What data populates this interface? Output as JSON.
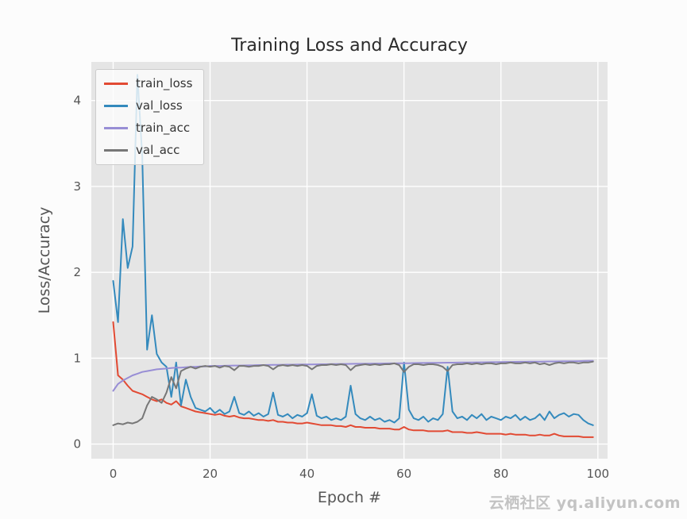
{
  "watermark": {
    "text": "云栖社区 yq.aliyun.com"
  },
  "chart_data": {
    "type": "line",
    "title": "Training Loss and Accuracy",
    "xlabel": "Epoch #",
    "ylabel": "Loss/Accuracy",
    "xlim": [
      -4.5,
      102
    ],
    "ylim": [
      -0.17,
      4.45
    ],
    "x_ticks": [
      0,
      20,
      40,
      60,
      80,
      100
    ],
    "y_ticks": [
      0,
      1,
      2,
      3,
      4
    ],
    "grid": true,
    "legend_position": "upper left",
    "plot_bg": "#e5e5e5",
    "grid_color": "#ffffff",
    "tick_color": "#555555",
    "title_color": "#2b2b2b",
    "x": [
      0,
      1,
      2,
      3,
      4,
      5,
      6,
      7,
      8,
      9,
      10,
      11,
      12,
      13,
      14,
      15,
      16,
      17,
      18,
      19,
      20,
      21,
      22,
      23,
      24,
      25,
      26,
      27,
      28,
      29,
      30,
      31,
      32,
      33,
      34,
      35,
      36,
      37,
      38,
      39,
      40,
      41,
      42,
      43,
      44,
      45,
      46,
      47,
      48,
      49,
      50,
      51,
      52,
      53,
      54,
      55,
      56,
      57,
      58,
      59,
      60,
      61,
      62,
      63,
      64,
      65,
      66,
      67,
      68,
      69,
      70,
      71,
      72,
      73,
      74,
      75,
      76,
      77,
      78,
      79,
      80,
      81,
      82,
      83,
      84,
      85,
      86,
      87,
      88,
      89,
      90,
      91,
      92,
      93,
      94,
      95,
      96,
      97,
      98,
      99
    ],
    "series": [
      {
        "name": "train_loss",
        "color": "#e24a33",
        "values": [
          1.42,
          0.8,
          0.75,
          0.68,
          0.62,
          0.6,
          0.58,
          0.55,
          0.52,
          0.5,
          0.52,
          0.48,
          0.46,
          0.5,
          0.44,
          0.42,
          0.4,
          0.38,
          0.37,
          0.36,
          0.35,
          0.34,
          0.35,
          0.33,
          0.32,
          0.33,
          0.31,
          0.3,
          0.3,
          0.29,
          0.28,
          0.28,
          0.27,
          0.28,
          0.26,
          0.26,
          0.25,
          0.25,
          0.24,
          0.24,
          0.25,
          0.24,
          0.23,
          0.22,
          0.22,
          0.22,
          0.21,
          0.21,
          0.2,
          0.22,
          0.2,
          0.2,
          0.19,
          0.19,
          0.19,
          0.18,
          0.18,
          0.18,
          0.17,
          0.17,
          0.2,
          0.17,
          0.16,
          0.16,
          0.16,
          0.15,
          0.15,
          0.15,
          0.15,
          0.16,
          0.14,
          0.14,
          0.14,
          0.13,
          0.13,
          0.14,
          0.13,
          0.12,
          0.12,
          0.12,
          0.12,
          0.11,
          0.12,
          0.11,
          0.11,
          0.11,
          0.1,
          0.1,
          0.11,
          0.1,
          0.1,
          0.12,
          0.1,
          0.09,
          0.09,
          0.09,
          0.09,
          0.08,
          0.08,
          0.08
        ]
      },
      {
        "name": "val_loss",
        "color": "#348abd",
        "values": [
          1.9,
          1.42,
          2.62,
          2.05,
          2.3,
          4.3,
          3.35,
          1.1,
          1.5,
          1.05,
          0.95,
          0.9,
          0.55,
          0.95,
          0.45,
          0.75,
          0.55,
          0.42,
          0.4,
          0.38,
          0.42,
          0.36,
          0.4,
          0.35,
          0.38,
          0.55,
          0.36,
          0.34,
          0.38,
          0.33,
          0.36,
          0.32,
          0.35,
          0.6,
          0.34,
          0.32,
          0.35,
          0.3,
          0.34,
          0.32,
          0.36,
          0.58,
          0.33,
          0.3,
          0.32,
          0.28,
          0.3,
          0.28,
          0.32,
          0.68,
          0.35,
          0.3,
          0.28,
          0.32,
          0.28,
          0.3,
          0.26,
          0.28,
          0.25,
          0.3,
          0.95,
          0.4,
          0.3,
          0.28,
          0.32,
          0.26,
          0.3,
          0.28,
          0.35,
          0.9,
          0.38,
          0.3,
          0.32,
          0.28,
          0.34,
          0.3,
          0.35,
          0.28,
          0.32,
          0.3,
          0.28,
          0.32,
          0.3,
          0.34,
          0.28,
          0.32,
          0.28,
          0.3,
          0.35,
          0.28,
          0.38,
          0.3,
          0.34,
          0.36,
          0.32,
          0.35,
          0.34,
          0.28,
          0.24,
          0.22
        ]
      },
      {
        "name": "train_acc",
        "color": "#988ed5",
        "values": [
          0.62,
          0.7,
          0.74,
          0.77,
          0.8,
          0.82,
          0.84,
          0.85,
          0.86,
          0.87,
          0.875,
          0.88,
          0.885,
          0.89,
          0.89,
          0.895,
          0.9,
          0.9,
          0.905,
          0.905,
          0.91,
          0.91,
          0.91,
          0.912,
          0.913,
          0.915,
          0.915,
          0.916,
          0.917,
          0.918,
          0.92,
          0.92,
          0.921,
          0.922,
          0.923,
          0.924,
          0.925,
          0.925,
          0.926,
          0.927,
          0.928,
          0.928,
          0.929,
          0.93,
          0.93,
          0.931,
          0.932,
          0.933,
          0.933,
          0.934,
          0.935,
          0.935,
          0.936,
          0.937,
          0.938,
          0.938,
          0.939,
          0.94,
          0.94,
          0.941,
          0.942,
          0.942,
          0.943,
          0.944,
          0.944,
          0.945,
          0.946,
          0.946,
          0.947,
          0.948,
          0.948,
          0.949,
          0.95,
          0.95,
          0.951,
          0.952,
          0.952,
          0.953,
          0.954,
          0.954,
          0.955,
          0.956,
          0.956,
          0.957,
          0.958,
          0.958,
          0.959,
          0.96,
          0.96,
          0.961,
          0.962,
          0.962,
          0.963,
          0.964,
          0.965,
          0.965,
          0.966,
          0.967,
          0.968,
          0.968
        ]
      },
      {
        "name": "val_acc",
        "color": "#777777",
        "values": [
          0.22,
          0.24,
          0.23,
          0.25,
          0.24,
          0.26,
          0.3,
          0.45,
          0.55,
          0.52,
          0.48,
          0.6,
          0.78,
          0.65,
          0.85,
          0.88,
          0.9,
          0.88,
          0.9,
          0.91,
          0.9,
          0.91,
          0.89,
          0.91,
          0.9,
          0.86,
          0.91,
          0.91,
          0.9,
          0.91,
          0.91,
          0.92,
          0.91,
          0.87,
          0.91,
          0.92,
          0.91,
          0.92,
          0.91,
          0.92,
          0.91,
          0.87,
          0.91,
          0.92,
          0.92,
          0.93,
          0.92,
          0.93,
          0.92,
          0.86,
          0.91,
          0.92,
          0.93,
          0.92,
          0.93,
          0.92,
          0.93,
          0.93,
          0.94,
          0.92,
          0.84,
          0.9,
          0.93,
          0.93,
          0.92,
          0.93,
          0.93,
          0.92,
          0.9,
          0.85,
          0.92,
          0.93,
          0.93,
          0.94,
          0.93,
          0.94,
          0.93,
          0.94,
          0.94,
          0.93,
          0.94,
          0.94,
          0.95,
          0.94,
          0.94,
          0.95,
          0.94,
          0.95,
          0.93,
          0.94,
          0.92,
          0.94,
          0.95,
          0.94,
          0.95,
          0.95,
          0.94,
          0.95,
          0.95,
          0.96
        ]
      }
    ]
  }
}
